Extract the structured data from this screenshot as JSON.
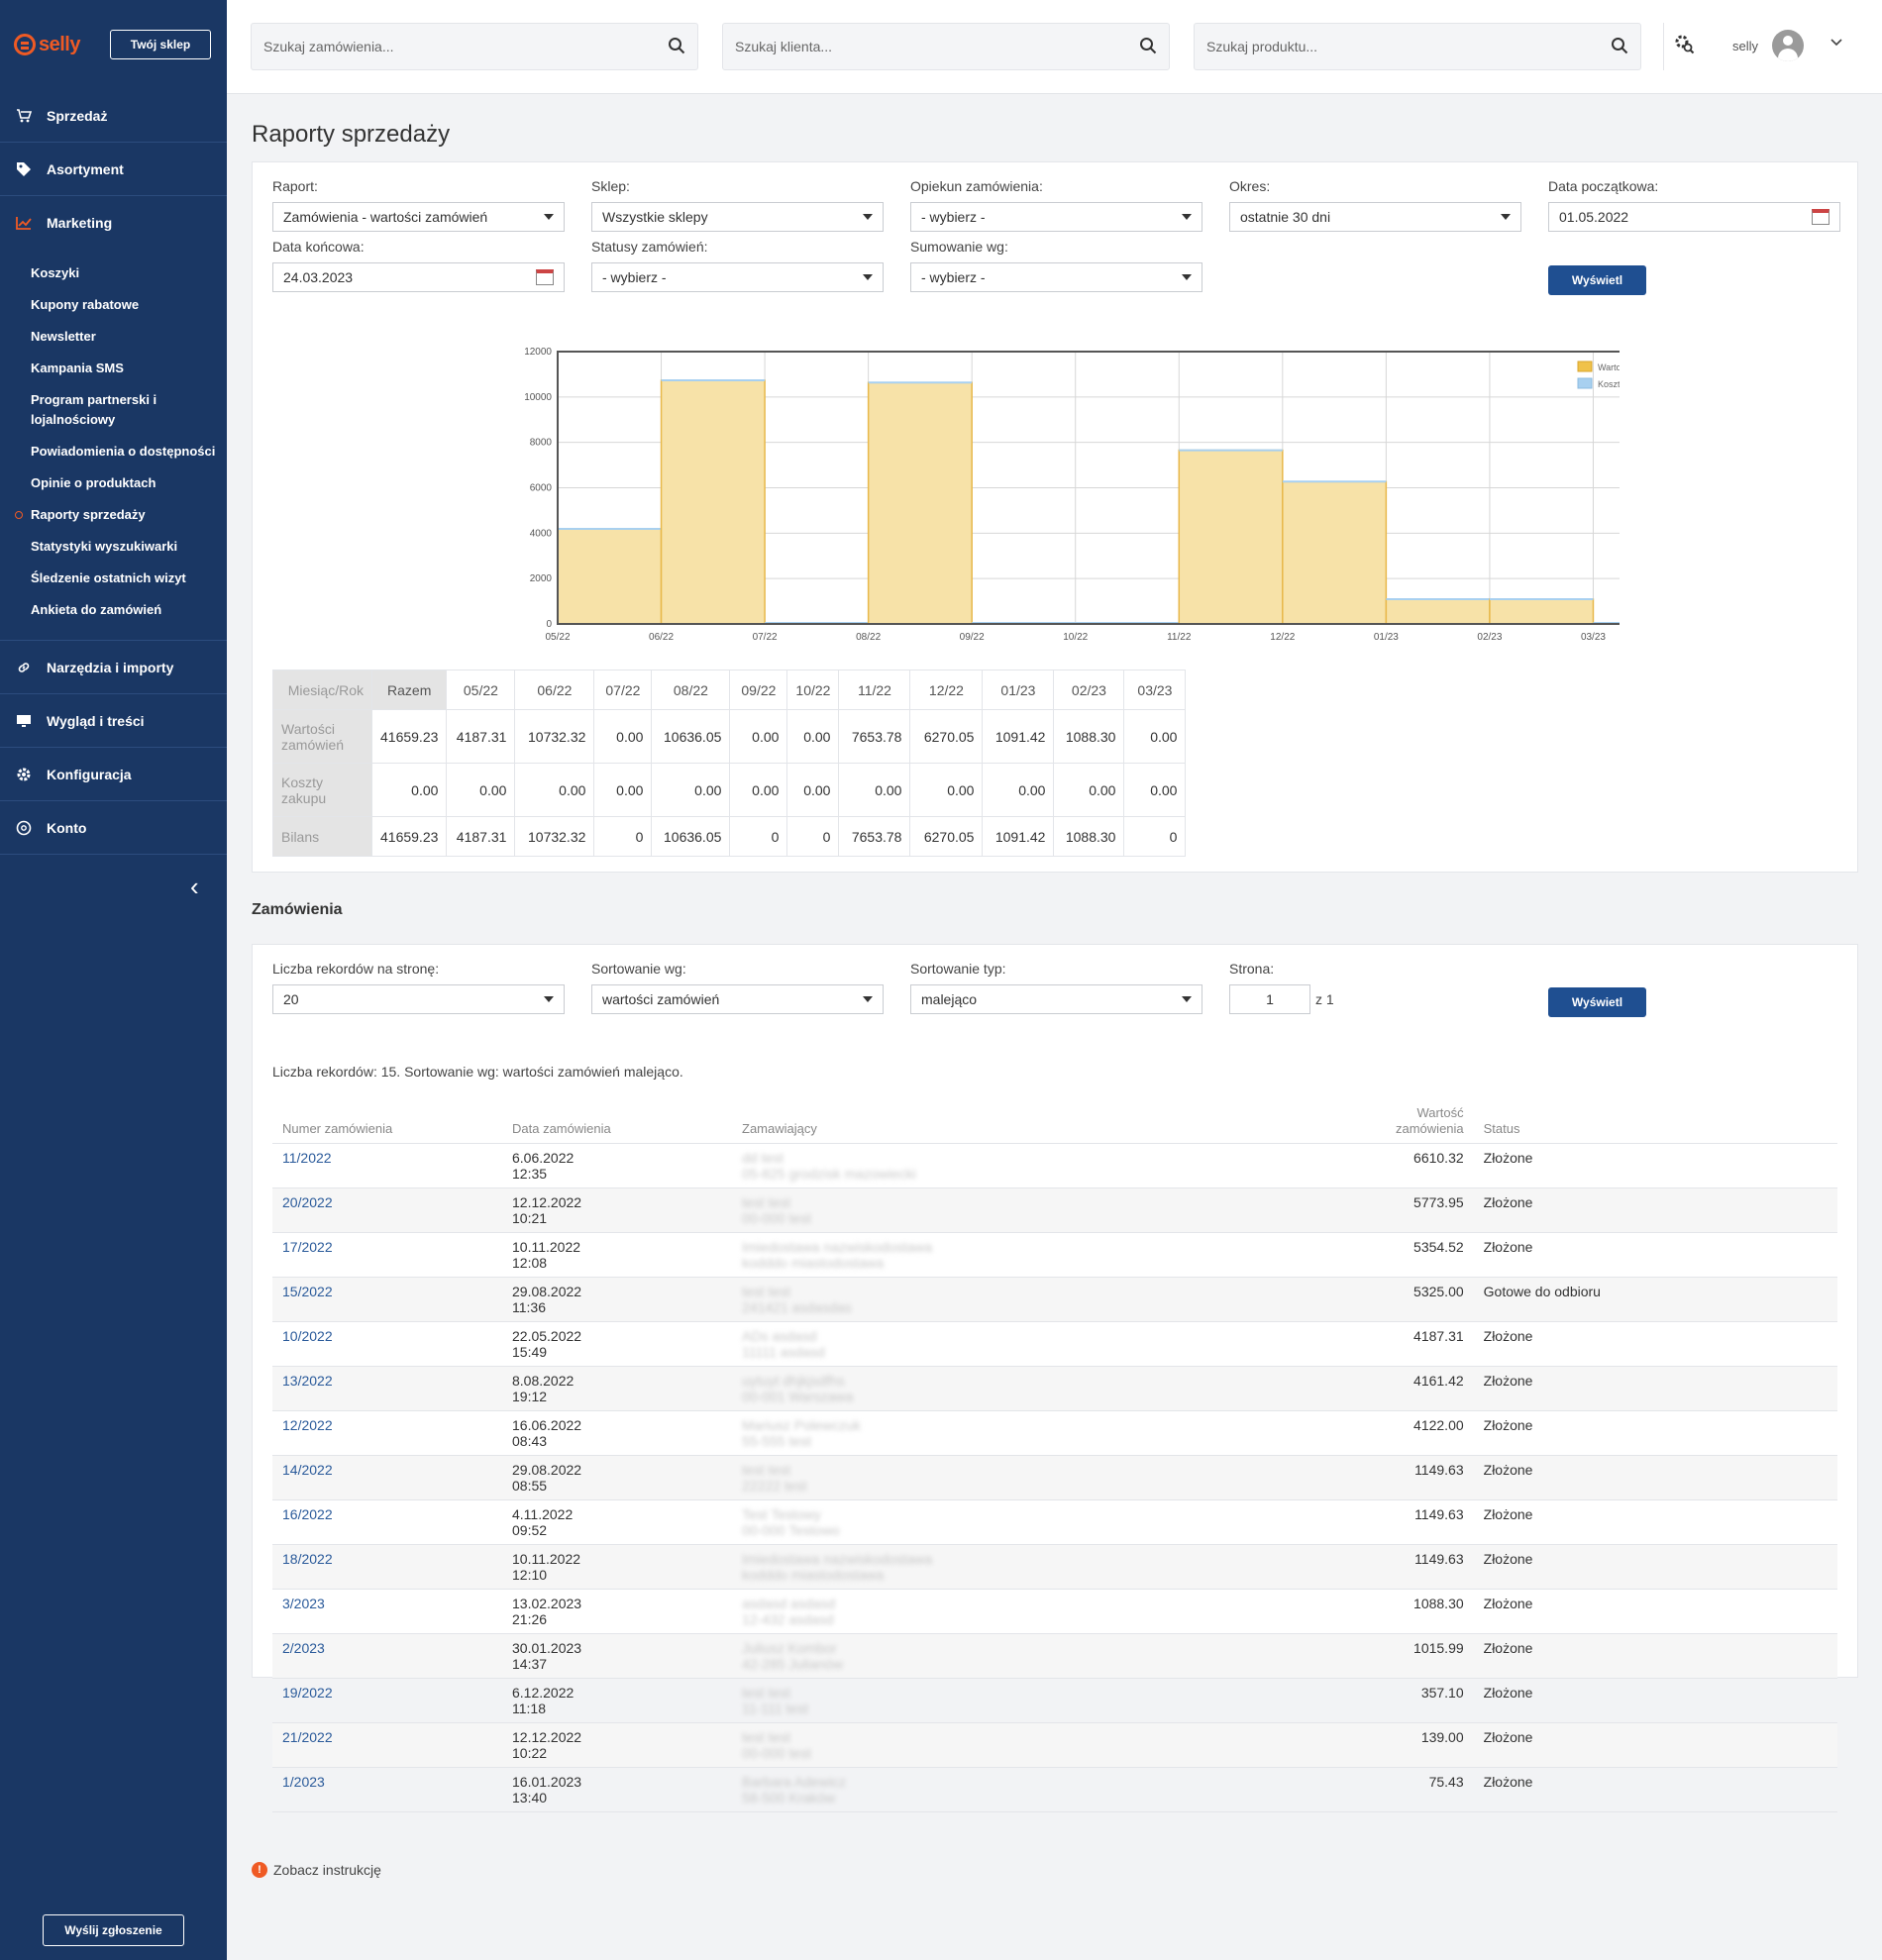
{
  "sidebar": {
    "logo": "selly",
    "shop_button": "Twój sklep",
    "items": [
      {
        "label": "Sprzedaż",
        "icon": "cart-icon"
      },
      {
        "label": "Asortyment",
        "icon": "tag-icon"
      },
      {
        "label": "Marketing",
        "icon": "chart-icon"
      }
    ],
    "marketing_sub": [
      "Koszyki",
      "Kupony rabatowe",
      "Newsletter",
      "Kampania SMS",
      "Program partnerski i lojalnościowy",
      "Powiadomienia o dostępności",
      "Opinie o produktach",
      "Raporty sprzedaży",
      "Statystyki wyszukiwarki",
      "Śledzenie ostatnich wizyt",
      "Ankieta do zamówień"
    ],
    "items_bottom": [
      {
        "label": "Narzędzia i importy",
        "icon": "link-icon"
      },
      {
        "label": "Wygląd i treści",
        "icon": "monitor-icon"
      },
      {
        "label": "Konfiguracja",
        "icon": "gear-icon"
      },
      {
        "label": "Konto",
        "icon": "account-icon"
      }
    ],
    "report_button": "Wyślij zgłoszenie"
  },
  "topbar": {
    "search_orders": "Szukaj zamówienia...",
    "search_client": "Szukaj klienta...",
    "search_product": "Szukaj produktu...",
    "user": "selly"
  },
  "page": {
    "title": "Raporty sprzedaży"
  },
  "filters": {
    "report_label": "Raport:",
    "report_value": "Zamówienia - wartości zamówień",
    "shop_label": "Sklep:",
    "shop_value": "Wszystkie sklepy",
    "keeper_label": "Opiekun zamówienia:",
    "keeper_value": "- wybierz -",
    "period_label": "Okres:",
    "period_value": "ostatnie 30 dni",
    "start_label": "Data początkowa:",
    "start_value": "01.05.2022",
    "end_label": "Data końcowa:",
    "end_value": "24.03.2023",
    "status_label": "Statusy zamówień:",
    "status_value": "- wybierz -",
    "sum_label": "Sumowanie wg:",
    "sum_value": "- wybierz -",
    "show_button": "Wyświetl"
  },
  "chart_data": {
    "type": "bar",
    "categories": [
      "05/22",
      "06/22",
      "07/22",
      "08/22",
      "09/22",
      "10/22",
      "11/22",
      "12/22",
      "01/23",
      "02/23",
      "03/23"
    ],
    "series": [
      {
        "name": "Wartości zamówień",
        "values": [
          4187.31,
          10732.32,
          0,
          10636.05,
          0,
          0,
          7653.78,
          6270.05,
          1091.42,
          1088.3,
          0
        ]
      },
      {
        "name": "Koszty zakupu",
        "values": [
          0,
          0,
          0,
          0,
          0,
          0,
          0,
          0,
          0,
          0,
          0
        ]
      }
    ],
    "y_ticks": [
      "0",
      "2000",
      "4000",
      "6000",
      "8000",
      "10000",
      "12000"
    ],
    "ylim": [
      0,
      12000
    ],
    "legend": "top-right",
    "colors": {
      "values": "#f7e2a8",
      "values_stroke": "#e8b84b",
      "costs": "#a8d0f0"
    }
  },
  "summary_table": {
    "header": [
      "Miesiąc/Rok",
      "Razem",
      "05/22",
      "06/22",
      "07/22",
      "08/22",
      "09/22",
      "10/22",
      "11/22",
      "12/22",
      "01/23",
      "02/23",
      "03/23"
    ],
    "rows": [
      {
        "label": "Wartości zamówień",
        "values": [
          "41659.23",
          "4187.31",
          "10732.32",
          "0.00",
          "10636.05",
          "0.00",
          "0.00",
          "7653.78",
          "6270.05",
          "1091.42",
          "1088.30",
          "0.00"
        ]
      },
      {
        "label": "Koszty zakupu",
        "values": [
          "0.00",
          "0.00",
          "0.00",
          "0.00",
          "0.00",
          "0.00",
          "0.00",
          "0.00",
          "0.00",
          "0.00",
          "0.00",
          "0.00"
        ]
      },
      {
        "label": "Bilans",
        "values": [
          "41659.23",
          "4187.31",
          "10732.32",
          "0",
          "10636.05",
          "0",
          "0",
          "7653.78",
          "6270.05",
          "1091.42",
          "1088.30",
          "0"
        ]
      }
    ]
  },
  "orders_section": {
    "title": "Zamówienia",
    "per_page_label": "Liczba rekordów na stronę:",
    "per_page_value": "20",
    "sort_label": "Sortowanie wg:",
    "sort_value": "wartości zamówień",
    "sort_type_label": "Sortowanie typ:",
    "sort_type_value": "malejąco",
    "page_label": "Strona:",
    "page_value": "1",
    "page_of": "z 1",
    "show_button": "Wyświetl",
    "info": "Liczba rekordów: 15. Sortowanie wg: wartości zamówień malejąco.",
    "columns": [
      "Numer zamówienia",
      "Data zamówienia",
      "Zamawiający",
      "Wartość zamówienia",
      "Status"
    ],
    "rows": [
      {
        "num": "11/2022",
        "date": "6.06.2022",
        "time": "12:35",
        "c1": "dd test",
        "c2": "05-825 grodzisk mazowiecki",
        "value": "6610.32",
        "status": "Złożone"
      },
      {
        "num": "20/2022",
        "date": "12.12.2022",
        "time": "10:21",
        "c1": "test test",
        "c2": "00-000 test",
        "value": "5773.95",
        "status": "Złożone"
      },
      {
        "num": "17/2022",
        "date": "10.11.2022",
        "time": "12:08",
        "c1": "Imiedostawa nazwiskodostawa",
        "c2": "kodddo miastodostawa",
        "value": "5354.52",
        "status": "Złożone"
      },
      {
        "num": "15/2022",
        "date": "29.08.2022",
        "time": "11:36",
        "c1": "test test",
        "c2": "241421 asdasdas",
        "value": "5325.00",
        "status": "Gotowe do odbioru"
      },
      {
        "num": "10/2022",
        "date": "22.05.2022",
        "time": "15:49",
        "c1": "ADs asdasd",
        "c2": "11111 asdasd",
        "value": "4187.31",
        "status": "Złożone"
      },
      {
        "num": "13/2022",
        "date": "8.08.2022",
        "time": "19:12",
        "c1": "uytuyt dhjkjsdfhs",
        "c2": "00-001 Warszawa",
        "value": "4161.42",
        "status": "Złożone"
      },
      {
        "num": "12/2022",
        "date": "16.06.2022",
        "time": "08:43",
        "c1": "Mariusz Polewczuk",
        "c2": "55-555 test",
        "value": "4122.00",
        "status": "Złożone"
      },
      {
        "num": "14/2022",
        "date": "29.08.2022",
        "time": "08:55",
        "c1": "test test",
        "c2": "22222 test",
        "value": "1149.63",
        "status": "Złożone"
      },
      {
        "num": "16/2022",
        "date": "4.11.2022",
        "time": "09:52",
        "c1": "Test Testowy",
        "c2": "00-000 Testowo",
        "value": "1149.63",
        "status": "Złożone"
      },
      {
        "num": "18/2022",
        "date": "10.11.2022",
        "time": "12:10",
        "c1": "Imiedostawa nazwiskodostawa",
        "c2": "kodddo miastodostawa",
        "value": "1149.63",
        "status": "Złożone"
      },
      {
        "num": "3/2023",
        "date": "13.02.2023",
        "time": "21:26",
        "c1": "asdasd asdasd",
        "c2": "12-432 asdasd",
        "value": "1088.30",
        "status": "Złożone"
      },
      {
        "num": "2/2023",
        "date": "30.01.2023",
        "time": "14:37",
        "c1": "Juliusz Kombor",
        "c2": "42-285 Julianów",
        "value": "1015.99",
        "status": "Złożone"
      },
      {
        "num": "19/2022",
        "date": "6.12.2022",
        "time": "11:18",
        "c1": "test test",
        "c2": "11-111 test",
        "value": "357.10",
        "status": "Złożone"
      },
      {
        "num": "21/2022",
        "date": "12.12.2022",
        "time": "10:22",
        "c1": "test test",
        "c2": "00-000 test",
        "value": "139.00",
        "status": "Złożone"
      },
      {
        "num": "1/2023",
        "date": "16.01.2023",
        "time": "13:40",
        "c1": "Barbara Adewicz",
        "c2": "58-500 Kraków",
        "value": "75.43",
        "status": "Złożone"
      }
    ]
  },
  "footer": {
    "instructions": "Zobacz instrukcję"
  }
}
